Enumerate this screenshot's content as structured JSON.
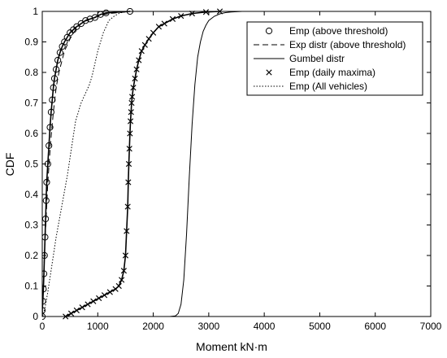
{
  "chart_data": {
    "type": "line",
    "xlabel": "Moment kN·m",
    "ylabel": "CDF",
    "xlim": [
      0,
      7000
    ],
    "ylim": [
      0,
      1
    ],
    "xticks": [
      0,
      1000,
      2000,
      3000,
      4000,
      5000,
      6000,
      7000
    ],
    "yticks": [
      0,
      0.1,
      0.2,
      0.3,
      0.4,
      0.5,
      0.6,
      0.7,
      0.8,
      0.9,
      1
    ],
    "xtick_labels": [
      "0",
      "1000",
      "2000",
      "3000",
      "4000",
      "5000",
      "6000",
      "7000"
    ],
    "ytick_labels": [
      "0",
      "0.1",
      "0.2",
      "0.3",
      "0.4",
      "0.5",
      "0.6",
      "0.7",
      "0.8",
      "0.9",
      "1"
    ],
    "grid": false,
    "legend_position": "top-right",
    "legend": [
      {
        "label": "Emp (above threshold)",
        "style": "circle"
      },
      {
        "label": "Exp distr (above threshold)",
        "style": "dashed"
      },
      {
        "label": "Gumbel distr",
        "style": "solid"
      },
      {
        "label": "Emp (daily maxima)",
        "style": "cross"
      },
      {
        "label": "Emp (All vehicles)",
        "style": "dotted"
      }
    ],
    "series": [
      {
        "name": "Emp (above threshold)",
        "marker": "circle",
        "x": [
          0,
          0,
          10,
          20,
          30,
          40,
          50,
          60,
          70,
          80,
          100,
          120,
          140,
          160,
          180,
          200,
          220,
          250,
          280,
          320,
          360,
          400,
          450,
          500,
          560,
          620,
          700,
          780,
          860,
          950,
          1050,
          1150,
          1580
        ],
        "y": [
          0,
          0.02,
          0.05,
          0.09,
          0.14,
          0.2,
          0.26,
          0.32,
          0.38,
          0.44,
          0.5,
          0.56,
          0.62,
          0.67,
          0.71,
          0.75,
          0.78,
          0.81,
          0.84,
          0.865,
          0.885,
          0.9,
          0.915,
          0.93,
          0.94,
          0.95,
          0.96,
          0.97,
          0.975,
          0.98,
          0.99,
          0.995,
          1
        ]
      },
      {
        "name": "Exp distr (above threshold)",
        "style": "dashed",
        "x": [
          0,
          25,
          50,
          100,
          150,
          200,
          250,
          300,
          400,
          500,
          600,
          700,
          800,
          1000,
          1200,
          1600
        ],
        "y": [
          0,
          0.13,
          0.25,
          0.44,
          0.57,
          0.67,
          0.75,
          0.8,
          0.87,
          0.91,
          0.94,
          0.96,
          0.97,
          0.985,
          0.993,
          1
        ]
      },
      {
        "name": "Gumbel distr",
        "style": "solid",
        "x": [
          2300,
          2400,
          2450,
          2500,
          2550,
          2600,
          2650,
          2700,
          2750,
          2800,
          2850,
          2900,
          2950,
          3000,
          3100,
          3200,
          3300,
          3400,
          3500,
          3600,
          3800,
          4000,
          7000
        ],
        "y": [
          0,
          0.002,
          0.01,
          0.04,
          0.12,
          0.27,
          0.46,
          0.63,
          0.76,
          0.85,
          0.9,
          0.935,
          0.955,
          0.97,
          0.984,
          0.992,
          0.996,
          0.998,
          0.999,
          1,
          1,
          1,
          1
        ]
      },
      {
        "name": "Emp (daily maxima)",
        "marker": "cross",
        "x": [
          420,
          520,
          620,
          720,
          820,
          920,
          1020,
          1120,
          1220,
          1320,
          1380,
          1430,
          1470,
          1500,
          1520,
          1540,
          1550,
          1560,
          1570,
          1580,
          1590,
          1600,
          1610,
          1620,
          1640,
          1670,
          1700,
          1740,
          1790,
          1850,
          1920,
          2000,
          2100,
          2200,
          2350,
          2500,
          2700,
          2950,
          3200
        ],
        "y": [
          0,
          0.01,
          0.02,
          0.03,
          0.04,
          0.05,
          0.06,
          0.07,
          0.08,
          0.09,
          0.1,
          0.12,
          0.15,
          0.2,
          0.28,
          0.36,
          0.44,
          0.5,
          0.55,
          0.6,
          0.64,
          0.67,
          0.7,
          0.72,
          0.75,
          0.78,
          0.81,
          0.84,
          0.87,
          0.89,
          0.91,
          0.93,
          0.95,
          0.96,
          0.975,
          0.985,
          0.993,
          0.998,
          1
        ]
      },
      {
        "name": "Emp (All vehicles)",
        "style": "dotted",
        "x": [
          10,
          50,
          100,
          150,
          200,
          250,
          300,
          350,
          400,
          450,
          500,
          550,
          600,
          650,
          700,
          750,
          800,
          850,
          900,
          950,
          1000,
          1050,
          1100,
          1150,
          1200,
          1300,
          1400,
          1500,
          1600
        ],
        "y": [
          0,
          0.03,
          0.08,
          0.14,
          0.2,
          0.26,
          0.31,
          0.36,
          0.41,
          0.46,
          0.52,
          0.58,
          0.64,
          0.67,
          0.7,
          0.72,
          0.74,
          0.76,
          0.79,
          0.83,
          0.87,
          0.9,
          0.93,
          0.95,
          0.97,
          0.985,
          0.995,
          0.999,
          1
        ]
      }
    ]
  }
}
